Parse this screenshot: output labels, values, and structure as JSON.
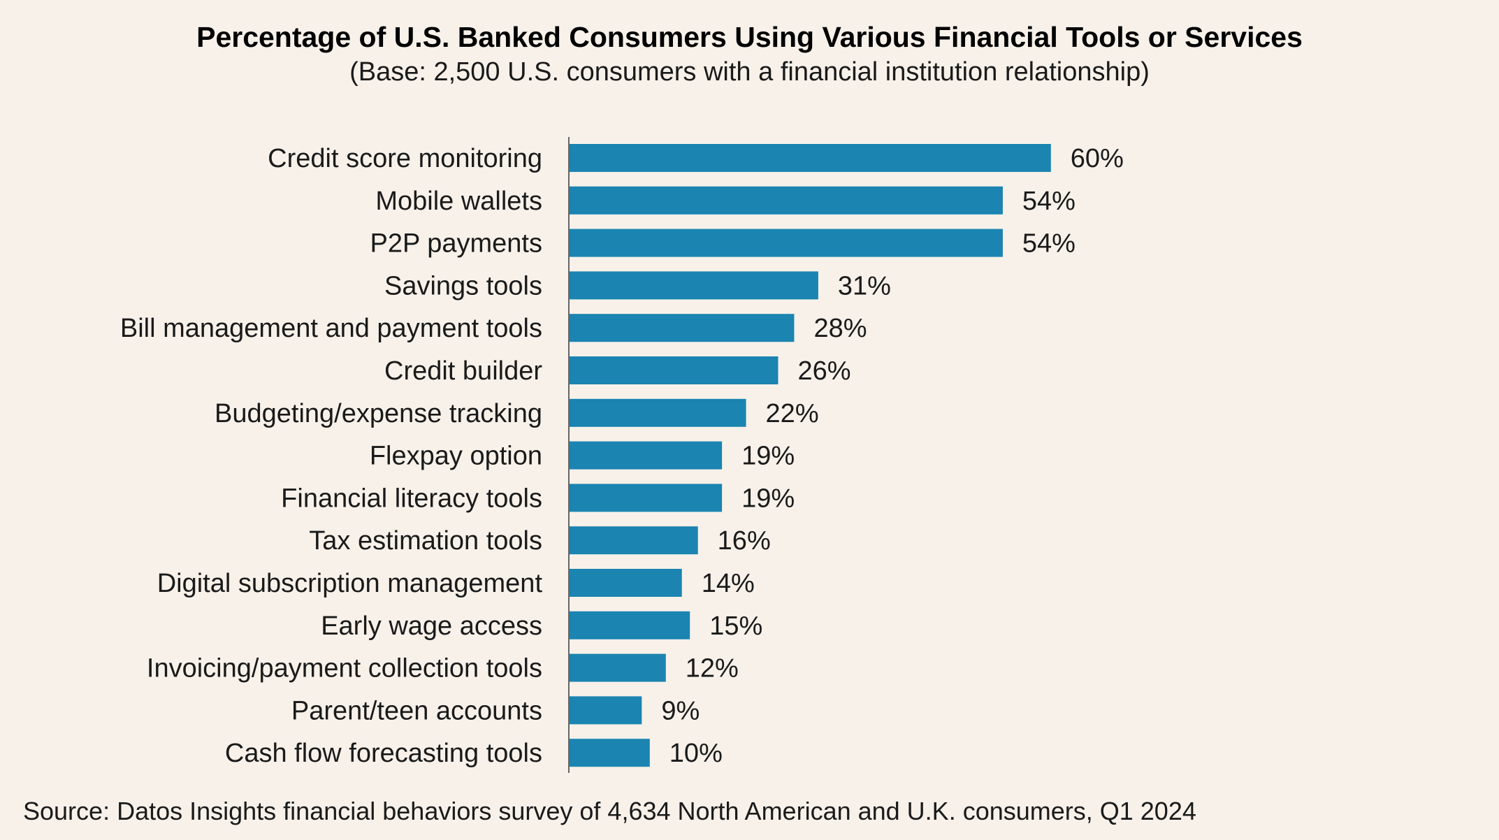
{
  "title": "Percentage of U.S. Banked Consumers Using Various Financial Tools or Services",
  "subtitle": "(Base: 2,500 U.S. consumers with a financial institution relationship)",
  "source": "Source: Datos Insights financial behaviors survey of 4,634 North American and U.K. consumers, Q1 2024",
  "colors": {
    "bar": "#1b84b0",
    "axis": "#666666",
    "background": "#f7f1ea"
  },
  "chart_data": {
    "type": "bar",
    "orientation": "horizontal",
    "categories": [
      "Credit score monitoring",
      "Mobile wallets",
      "P2P payments",
      "Savings tools",
      "Bill management and payment tools",
      "Credit builder",
      "Budgeting/expense tracking",
      "Flexpay option",
      "Financial literacy tools",
      "Tax estimation tools",
      "Digital subscription management",
      "Early wage access",
      "Invoicing/payment collection tools",
      "Parent/teen accounts",
      "Cash flow forecasting tools"
    ],
    "values": [
      60,
      54,
      54,
      31,
      28,
      26,
      22,
      19,
      19,
      16,
      14,
      15,
      12,
      9,
      10
    ],
    "value_labels": [
      "60%",
      "54%",
      "54%",
      "31%",
      "28%",
      "26%",
      "22%",
      "19%",
      "19%",
      "16%",
      "14%",
      "15%",
      "12%",
      "9%",
      "10%"
    ],
    "unit": "%",
    "xlim": [
      0,
      100
    ],
    "grid": false,
    "legend": "none"
  }
}
